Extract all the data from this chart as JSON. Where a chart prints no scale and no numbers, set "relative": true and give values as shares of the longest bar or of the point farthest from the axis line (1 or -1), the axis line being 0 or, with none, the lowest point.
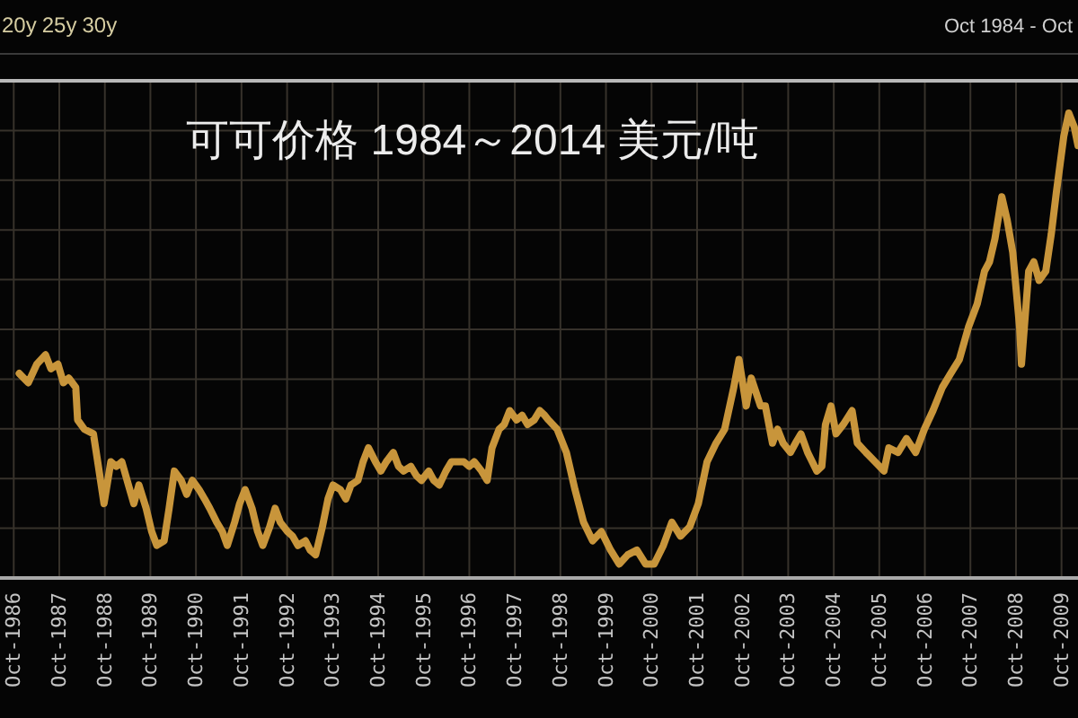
{
  "chart_data": {
    "type": "line",
    "title": "可可价格 1984～2014 美元/吨",
    "annotations": [
      "20y",
      "25y",
      "30y",
      "Oct 1984 - Oct"
    ],
    "relative": true,
    "x": [
      "1986-11-14",
      "1987-01-26",
      "1987-04-04",
      "1987-06-13",
      "1987-07-26",
      "1987-09-20",
      "1987-11-03",
      "1987-12-16",
      "1988-02-10",
      "1988-02-25",
      "1988-04-19",
      "1988-07-01",
      "1988-08-10",
      "1988-09-24",
      "1988-11-18",
      "1989-01-01",
      "1989-02-14",
      "1989-04-08",
      "1989-05-21",
      "1989-07-01",
      "1989-08-28",
      "1989-10-11",
      "1989-11-21",
      "1990-01-19",
      "1990-02-28",
      "1990-04-11",
      "1990-06-05",
      "1990-07-19",
      "1990-09-02",
      "1990-10-26",
      "1990-12-09",
      "1991-01-19",
      "1991-03-16",
      "1991-04-30",
      "1991-06-09",
      "1991-08-07",
      "1991-09-16",
      "1991-10-30",
      "1991-12-24",
      "1992-02-07",
      "1992-03-20",
      "1992-05-14",
      "1992-06-27",
      "1992-08-07",
      "1992-10-04",
      "1992-11-14",
      "1992-12-27",
      "1993-02-25",
      "1993-04-04",
      "1993-05-18",
      "1993-07-11",
      "1993-08-25",
      "1993-10-04",
      "1993-12-02",
      "1994-01-15",
      "1994-02-25",
      "1994-04-22",
      "1994-06-02",
      "1994-07-15",
      "1994-09-09",
      "1994-10-22",
      "1994-12-05",
      "1995-01-30",
      "1995-03-13",
      "1995-04-22",
      "1995-06-20",
      "1995-08-03",
      "1995-09-13",
      "1995-11-10",
      "1995-12-20",
      "1996-02-03",
      "1996-03-27",
      "1996-05-10",
      "1996-06-24",
      "1996-08-18",
      "1996-10-01",
      "1996-11-10",
      "1997-01-08",
      "1997-02-21",
      "1997-04-01",
      "1997-05-28",
      "1997-07-08",
      "1997-08-21",
      "1997-10-15",
      "1997-11-28",
      "1998-01-11",
      "1998-03-05",
      "1998-04-19",
      "1998-05-28",
      "1998-06-27",
      "1998-09-05",
      "1998-11-18",
      "1999-01-26",
      "1999-04-04",
      "1999-06-16",
      "1999-08-25",
      "1999-11-07",
      "2000-01-15",
      "2000-03-24",
      "2000-06-05",
      "2000-08-14",
      "2000-10-22",
      "2001-01-04",
      "2001-03-13",
      "2001-05-21",
      "2001-08-03",
      "2001-10-11",
      "2001-12-20",
      "2002-03-02",
      "2002-05-10",
      "2002-07-22",
      "2002-09-02",
      "2002-10-30",
      "2002-12-09",
      "2003-02-21",
      "2003-04-01",
      "2003-05-28",
      "2003-07-08",
      "2003-08-21",
      "2003-10-19",
      "2003-11-28",
      "2004-01-11",
      "2004-03-05",
      "2004-05-18",
      "2004-06-27",
      "2004-07-26",
      "2004-09-09",
      "2004-10-19",
      "2004-12-16",
      "2005-02-25",
      "2005-04-08",
      "2005-06-16",
      "2005-08-28",
      "2005-11-07",
      "2005-12-16",
      "2006-02-28",
      "2006-05-07",
      "2006-07-19",
      "2006-09-27",
      "2006-12-05",
      "2007-02-18",
      "2007-04-26",
      "2007-07-04",
      "2007-09-16",
      "2007-11-25",
      "2008-01-22",
      "2008-03-02",
      "2008-04-15",
      "2008-06-09",
      "2008-07-22",
      "2008-09-05",
      "2008-10-30",
      "2008-11-14",
      "2009-01-11",
      "2009-02-21",
      "2009-04-04",
      "2009-05-28",
      "2009-07-11",
      "2009-08-21",
      "2009-10-19",
      "2009-11-28",
      "2010-01-11",
      "2010-02-10"
    ],
    "series": [
      {
        "color": "#c8953b",
        "values": [
          0.44,
          0.42,
          0.46,
          0.48,
          0.45,
          0.46,
          0.42,
          0.43,
          0.41,
          0.34,
          0.32,
          0.31,
          0.24,
          0.16,
          0.25,
          0.24,
          0.25,
          0.2,
          0.16,
          0.2,
          0.15,
          0.1,
          0.07,
          0.08,
          0.15,
          0.23,
          0.21,
          0.18,
          0.21,
          0.19,
          0.17,
          0.15,
          0.12,
          0.1,
          0.07,
          0.12,
          0.16,
          0.19,
          0.15,
          0.1,
          0.07,
          0.11,
          0.15,
          0.12,
          0.1,
          0.09,
          0.07,
          0.08,
          0.06,
          0.05,
          0.11,
          0.17,
          0.2,
          0.19,
          0.17,
          0.2,
          0.21,
          0.25,
          0.28,
          0.25,
          0.23,
          0.25,
          0.27,
          0.24,
          0.23,
          0.24,
          0.22,
          0.21,
          0.23,
          0.21,
          0.2,
          0.23,
          0.25,
          0.25,
          0.25,
          0.24,
          0.25,
          0.23,
          0.21,
          0.28,
          0.32,
          0.33,
          0.36,
          0.34,
          0.35,
          0.33,
          0.34,
          0.36,
          0.35,
          0.34,
          0.32,
          0.27,
          0.19,
          0.12,
          0.08,
          0.1,
          0.06,
          0.03,
          0.05,
          0.06,
          0.03,
          0.03,
          0.07,
          0.12,
          0.09,
          0.11,
          0.16,
          0.25,
          0.29,
          0.32,
          0.41,
          0.47,
          0.37,
          0.43,
          0.37,
          0.37,
          0.29,
          0.32,
          0.29,
          0.27,
          0.29,
          0.31,
          0.27,
          0.23,
          0.24,
          0.33,
          0.37,
          0.31,
          0.33,
          0.36,
          0.29,
          0.27,
          0.25,
          0.23,
          0.28,
          0.27,
          0.3,
          0.27,
          0.32,
          0.36,
          0.41,
          0.44,
          0.47,
          0.54,
          0.59,
          0.66,
          0.68,
          0.73,
          0.82,
          0.77,
          0.7,
          0.54,
          0.46,
          0.66,
          0.68,
          0.64,
          0.66,
          0.74,
          0.83,
          0.95,
          1.0,
          0.97,
          0.93
        ]
      }
    ],
    "xlim": [
      "1986-06-13",
      "2010-02-10"
    ],
    "xticks": [
      {
        "value": "1986-10",
        "label": "Oct-1986"
      },
      {
        "value": "1987-10",
        "label": "Oct-1987"
      },
      {
        "value": "1988-10",
        "label": "Oct-1988"
      },
      {
        "value": "1989-10",
        "label": "Oct-1989"
      },
      {
        "value": "1990-10",
        "label": "Oct-1990"
      },
      {
        "value": "1991-10",
        "label": "Oct-1991"
      },
      {
        "value": "1992-10",
        "label": "Oct-1992"
      },
      {
        "value": "1993-10",
        "label": "Oct-1993"
      },
      {
        "value": "1994-10",
        "label": "Oct-1994"
      },
      {
        "value": "1995-10",
        "label": "Oct-1995"
      },
      {
        "value": "1996-10",
        "label": "Oct-1996"
      },
      {
        "value": "1997-10",
        "label": "Oct-1997"
      },
      {
        "value": "1998-10",
        "label": "Oct-1998"
      },
      {
        "value": "1999-10",
        "label": "Oct-1999"
      },
      {
        "value": "2000-10",
        "label": "Oct-2000"
      },
      {
        "value": "2001-10",
        "label": "Oct-2001"
      },
      {
        "value": "2002-10",
        "label": "Oct-2002"
      },
      {
        "value": "2003-10",
        "label": "Oct-2003"
      },
      {
        "value": "2004-10",
        "label": "Oct-2004"
      },
      {
        "value": "2005-10",
        "label": "Oct-2005"
      },
      {
        "value": "2006-10",
        "label": "Oct-2006"
      },
      {
        "value": "2007-10",
        "label": "Oct-2007"
      },
      {
        "value": "2008-10",
        "label": "Oct-2008"
      },
      {
        "value": "2009-10",
        "label": "Oct-2009"
      }
    ],
    "grid": true,
    "tick_labels": "x",
    "line_style": "solid"
  }
}
